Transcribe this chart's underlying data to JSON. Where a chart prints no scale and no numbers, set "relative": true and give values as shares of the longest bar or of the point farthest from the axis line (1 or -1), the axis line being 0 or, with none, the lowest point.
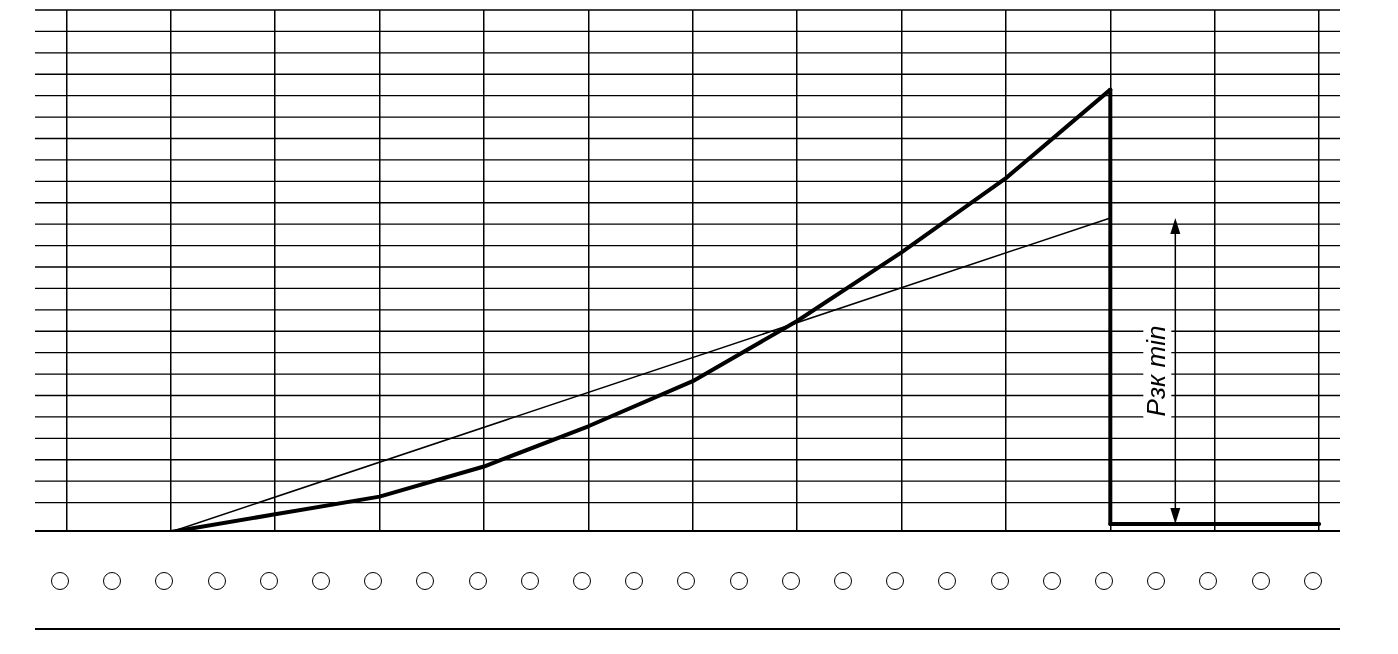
{
  "chart_data": {
    "type": "line",
    "relative": true,
    "categories": [
      null,
      null,
      null,
      null,
      null,
      null,
      null,
      null,
      null,
      null,
      null,
      null,
      null
    ],
    "series": [
      {
        "color": "#000000",
        "values": [
          0,
          0,
          0.04,
          0.08,
          0.148,
          0.239,
          0.341,
          0.477,
          0.632,
          0.8,
          1,
          null,
          null
        ]
      },
      {
        "color": "#000000",
        "values": [
          null,
          0,
          null,
          null,
          null,
          null,
          null,
          null,
          null,
          null,
          0.71,
          null,
          null
        ]
      },
      {
        "color": "#000000",
        "values": [
          null,
          null,
          null,
          null,
          null,
          null,
          null,
          null,
          null,
          null,
          0.018,
          0.018,
          0.018
        ]
      }
    ],
    "annotations": [
      "Рзк min"
    ],
    "grid": true,
    "legend": false,
    "marker": "none",
    "line_style": "solid"
  }
}
